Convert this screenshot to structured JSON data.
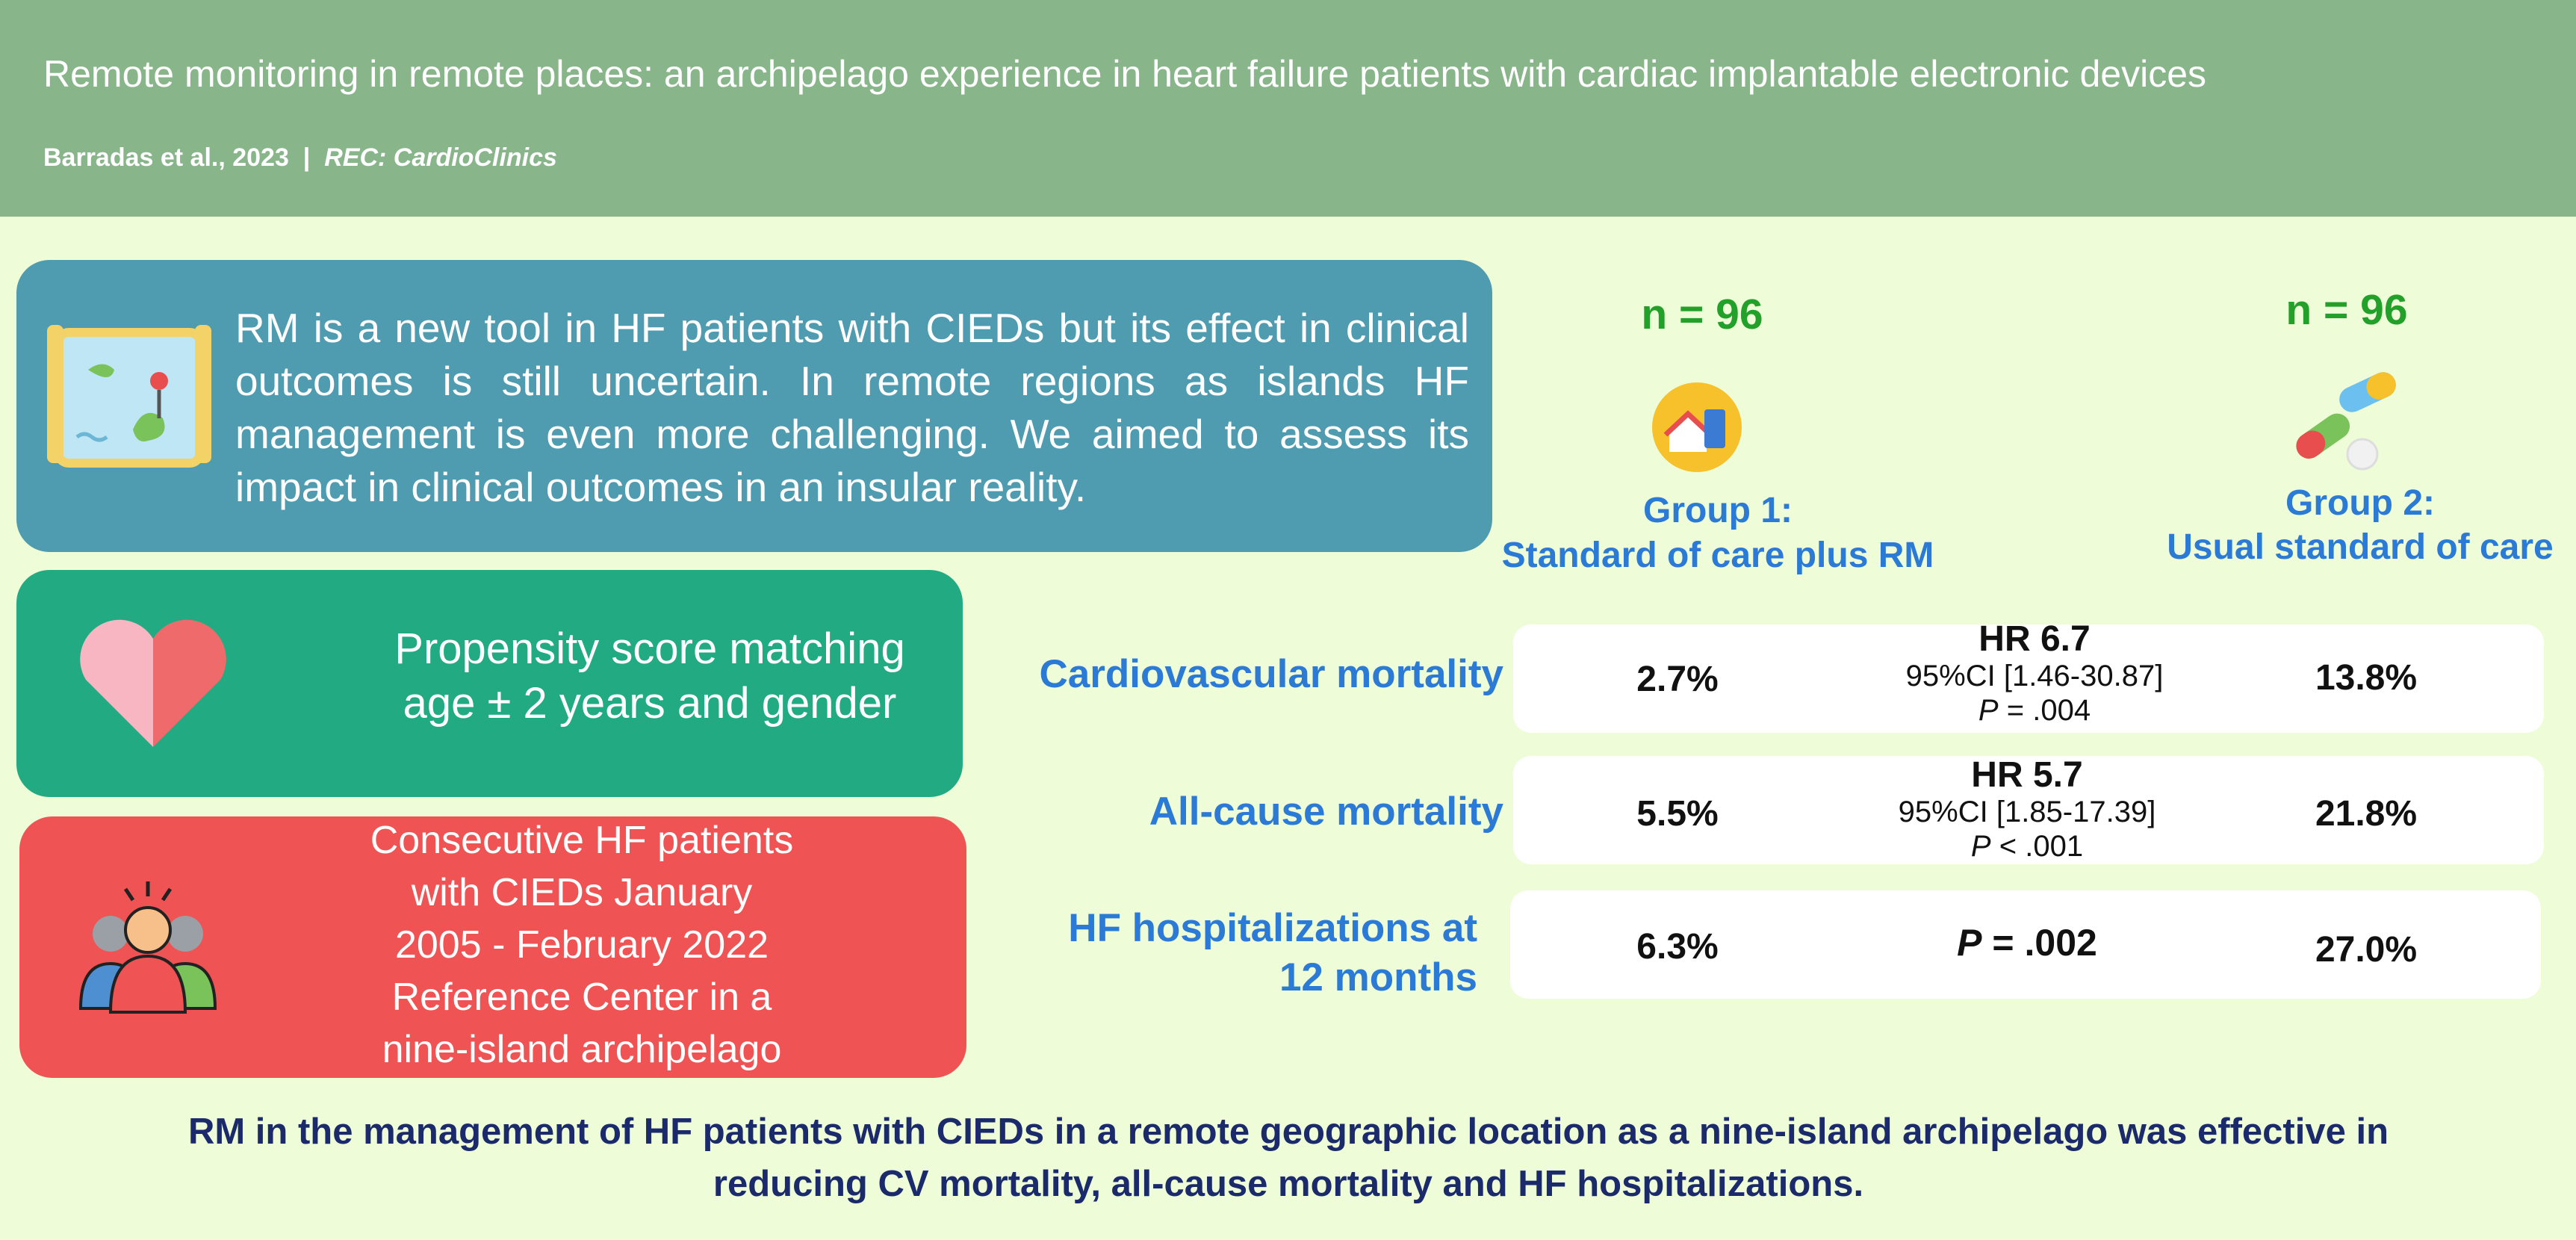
{
  "header": {
    "title": "Remote monitoring in remote places: an archipelago experience in heart failure patients with cardiac implantable electronic devices",
    "citation": {
      "authors": "Barradas et al., 2023",
      "separator": "|",
      "journal": "REC: CardioClinics"
    }
  },
  "background": "RM is a new tool in HF patients with CIEDs but its effect in clinical outcomes is still uncertain. In remote regions as islands HF management is even more challenging. We aimed to assess its impact in clinical outcomes in an insular reality.",
  "matching": [
    "Propensity score matching",
    "age ± 2 years and gender"
  ],
  "population": [
    "Consecutive HF patients",
    "with CIEDs January",
    "2005 - February 2022",
    "Reference Center in a",
    "nine-island archipelago"
  ],
  "groups": [
    {
      "n": "n = 96",
      "heading": "Group 1:",
      "name": "Standard of care plus RM"
    },
    {
      "n": "n = 96",
      "heading": "Group 2:",
      "name": "Usual standard of care"
    }
  ],
  "outcomes": [
    {
      "label": "Cardiovascular mortality",
      "group1": "2.7%",
      "hr": "HR 6.7",
      "ci": "95%CI [1.46-30.87]",
      "p": {
        "symbol": "P",
        "text": "= .004"
      },
      "group2": "13.8%"
    },
    {
      "label": "All-cause mortality",
      "group1": "5.5%",
      "hr": "HR 5.7",
      "ci": "95%CI [1.85-17.39]",
      "p": {
        "symbol": "P",
        "text": "< .001"
      },
      "group2": "21.8%"
    },
    {
      "label": "HF hospitalizations at 12 months",
      "group1": "6.3%",
      "p": {
        "symbol": "P",
        "text": "= .002"
      },
      "group2": "27.0%"
    }
  ],
  "conclusion": "RM in the management of HF patients with CIEDs in a remote geographic location as a nine-island archipelago was effective in reducing CV mortality, all-cause mortality and HF hospitalizations."
}
